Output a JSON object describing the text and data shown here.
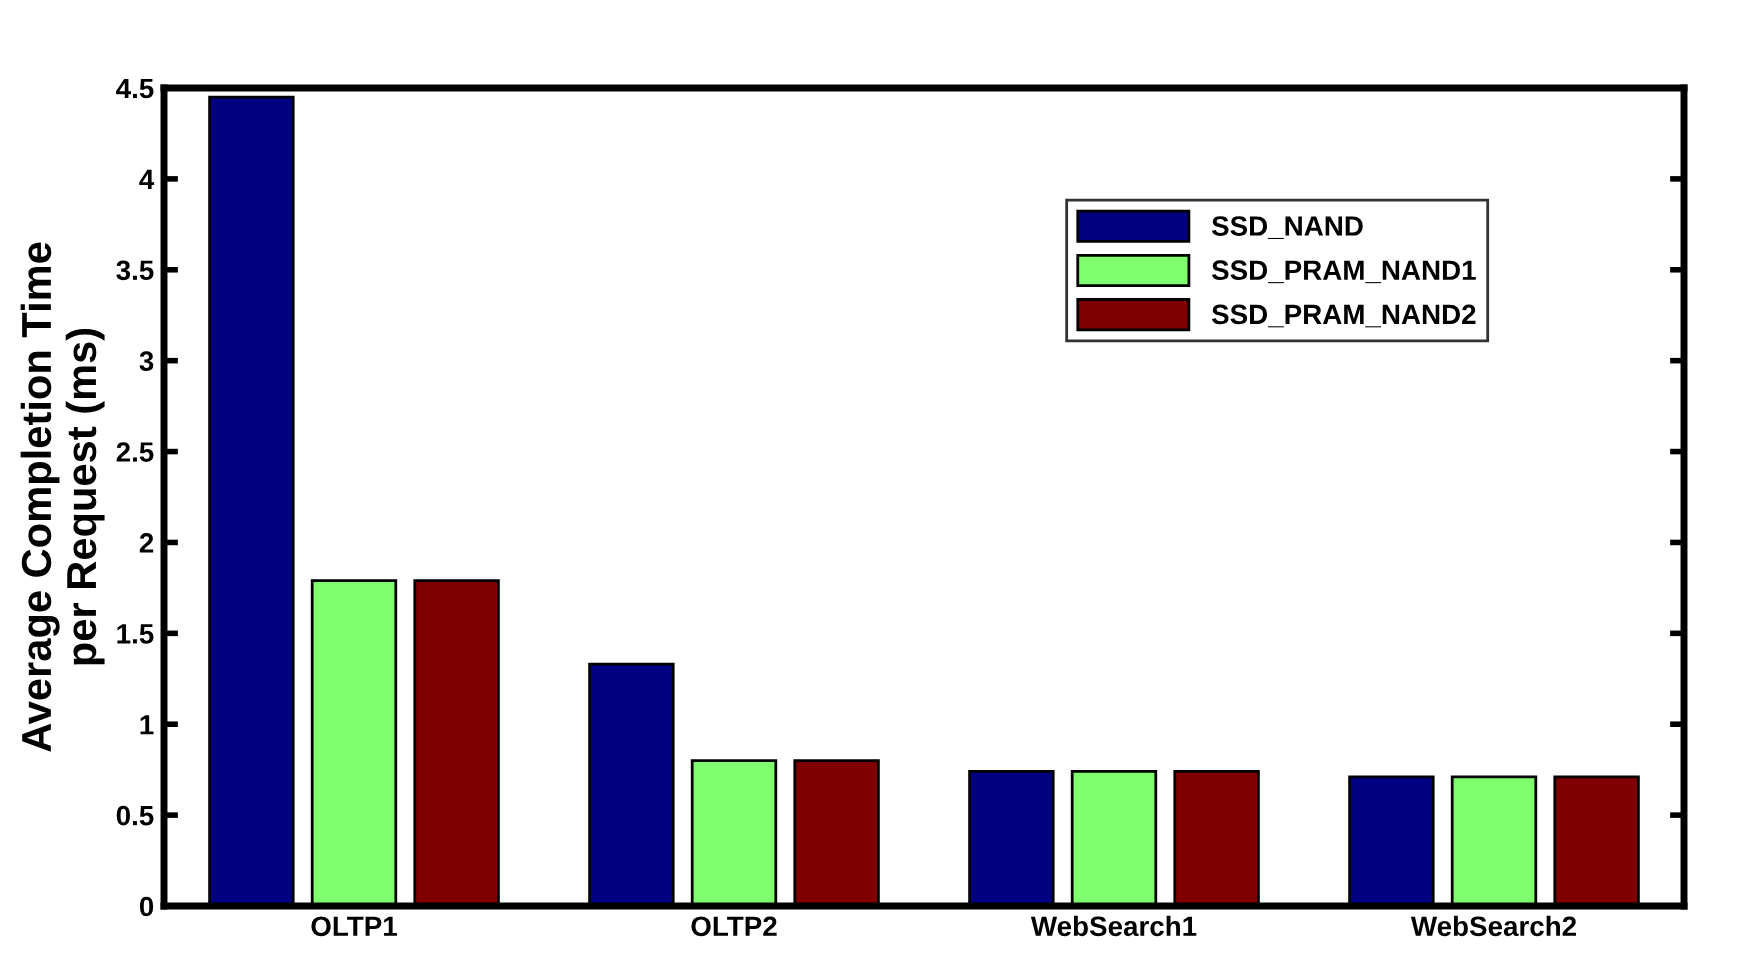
{
  "chart_data": {
    "type": "bar",
    "ylabel": "Average Completion Time\nper Request (ms)",
    "categories": [
      "OLTP1",
      "OLTP2",
      "WebSearch1",
      "WebSearch2"
    ],
    "series": [
      {
        "name": "SSD_NAND",
        "color": "#000080",
        "values": [
          4.45,
          1.33,
          0.74,
          0.71
        ]
      },
      {
        "name": "SSD_PRAM_NAND1",
        "color": "#80ff6e",
        "values": [
          1.79,
          0.8,
          0.74,
          0.71
        ]
      },
      {
        "name": "SSD_PRAM_NAND2",
        "color": "#800000",
        "values": [
          1.79,
          0.8,
          0.74,
          0.71
        ]
      }
    ],
    "ylim": [
      0,
      4.5
    ],
    "yticks": [
      0,
      0.5,
      1,
      1.5,
      2,
      2.5,
      3,
      3.5,
      4,
      4.5
    ],
    "grid": false,
    "legend": "top right"
  }
}
